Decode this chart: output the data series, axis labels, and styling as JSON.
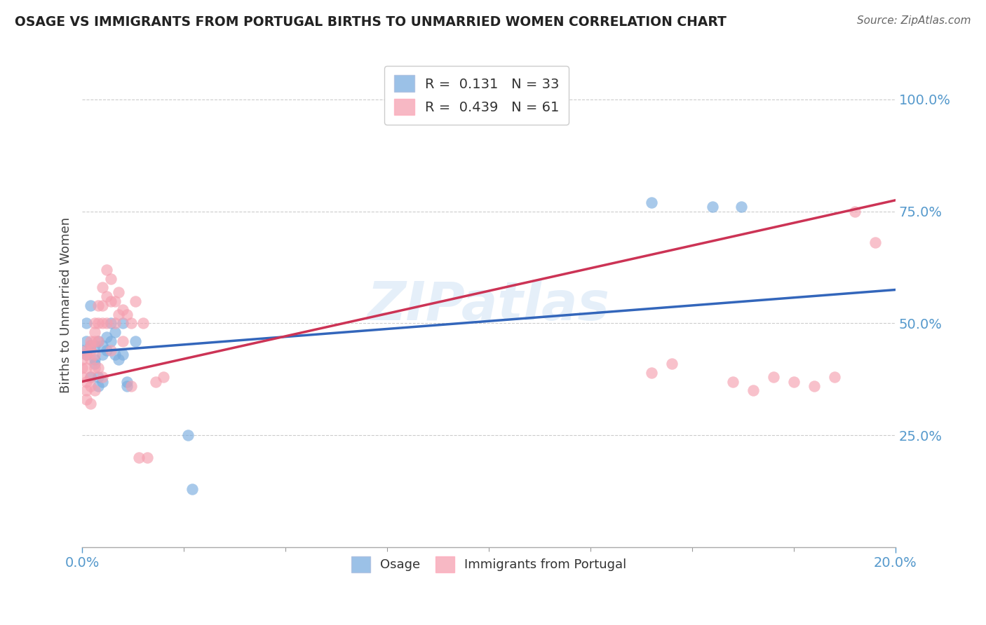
{
  "title": "OSAGE VS IMMIGRANTS FROM PORTUGAL BIRTHS TO UNMARRIED WOMEN CORRELATION CHART",
  "source": "Source: ZipAtlas.com",
  "ylabel": "Births to Unmarried Women",
  "watermark": "ZIPatlas",
  "legend1_label": "R =  0.131   N = 33",
  "legend2_label": "R =  0.439   N = 61",
  "osage_color": "#7aaddf",
  "portugal_color": "#f5a0b0",
  "trend_osage_color": "#3366bb",
  "trend_portugal_color": "#cc3355",
  "background_color": "#ffffff",
  "grid_color": "#cccccc",
  "title_color": "#222222",
  "source_color": "#666666",
  "tick_color": "#5599cc",
  "ylabel_color": "#444444",
  "osage_R": 0.131,
  "osage_N": 33,
  "portugal_R": 0.439,
  "portugal_N": 61,
  "osage_x": [
    0.0,
    0.001,
    0.001,
    0.001,
    0.002,
    0.002,
    0.002,
    0.003,
    0.003,
    0.003,
    0.004,
    0.004,
    0.004,
    0.005,
    0.005,
    0.005,
    0.006,
    0.006,
    0.007,
    0.007,
    0.008,
    0.008,
    0.009,
    0.01,
    0.01,
    0.011,
    0.011,
    0.013,
    0.026,
    0.027,
    0.14,
    0.155,
    0.162
  ],
  "osage_y": [
    0.44,
    0.43,
    0.46,
    0.5,
    0.45,
    0.38,
    0.54,
    0.42,
    0.41,
    0.45,
    0.38,
    0.36,
    0.46,
    0.45,
    0.37,
    0.43,
    0.47,
    0.44,
    0.5,
    0.46,
    0.48,
    0.43,
    0.42,
    0.43,
    0.5,
    0.37,
    0.36,
    0.46,
    0.25,
    0.13,
    0.77,
    0.76,
    0.76
  ],
  "portugal_x": [
    0.0,
    0.0,
    0.0,
    0.001,
    0.001,
    0.001,
    0.001,
    0.001,
    0.001,
    0.002,
    0.002,
    0.002,
    0.002,
    0.002,
    0.002,
    0.002,
    0.003,
    0.003,
    0.003,
    0.003,
    0.003,
    0.003,
    0.004,
    0.004,
    0.004,
    0.004,
    0.005,
    0.005,
    0.005,
    0.005,
    0.006,
    0.006,
    0.006,
    0.007,
    0.007,
    0.007,
    0.008,
    0.008,
    0.009,
    0.009,
    0.01,
    0.01,
    0.011,
    0.012,
    0.012,
    0.013,
    0.014,
    0.015,
    0.016,
    0.018,
    0.02,
    0.14,
    0.145,
    0.16,
    0.165,
    0.17,
    0.175,
    0.18,
    0.185,
    0.19,
    0.195
  ],
  "portugal_y": [
    0.42,
    0.4,
    0.38,
    0.44,
    0.43,
    0.4,
    0.37,
    0.35,
    0.33,
    0.46,
    0.45,
    0.44,
    0.42,
    0.38,
    0.36,
    0.32,
    0.5,
    0.48,
    0.46,
    0.43,
    0.4,
    0.35,
    0.54,
    0.5,
    0.46,
    0.4,
    0.58,
    0.54,
    0.5,
    0.38,
    0.62,
    0.56,
    0.5,
    0.6,
    0.55,
    0.44,
    0.55,
    0.5,
    0.57,
    0.52,
    0.53,
    0.46,
    0.52,
    0.5,
    0.36,
    0.55,
    0.2,
    0.5,
    0.2,
    0.37,
    0.38,
    0.39,
    0.41,
    0.37,
    0.35,
    0.38,
    0.37,
    0.36,
    0.38,
    0.75,
    0.68
  ],
  "xlim": [
    0.0,
    0.2
  ],
  "ylim": [
    0.0,
    1.08
  ],
  "yticks": [
    0.25,
    0.5,
    0.75,
    1.0
  ],
  "ytick_labels": [
    "25.0%",
    "50.0%",
    "75.0%",
    "100.0%"
  ],
  "xticks": [
    0.0,
    0.2
  ],
  "xtick_labels": [
    "0.0%",
    "20.0%"
  ],
  "trend_osage_x0": 0.0,
  "trend_osage_x1": 0.2,
  "trend_osage_y0": 0.435,
  "trend_osage_y1": 0.575,
  "trend_portugal_x0": 0.0,
  "trend_portugal_x1": 0.2,
  "trend_portugal_y0": 0.37,
  "trend_portugal_y1": 0.775
}
